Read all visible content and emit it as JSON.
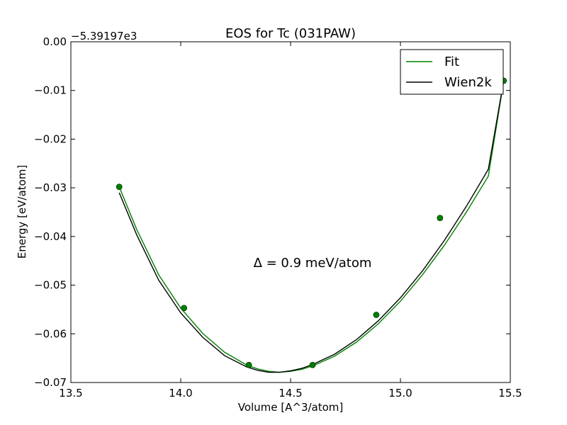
{
  "chart_data": {
    "type": "line",
    "title": "EOS for Tc (031PAW)",
    "xlabel": "Volume [A^3/atom]",
    "ylabel": "Energy [eV/atom]",
    "y_offset_label": "−5.39197e3",
    "xlim": [
      13.5,
      15.5
    ],
    "ylim": [
      -0.07,
      0.0
    ],
    "x_ticks": [
      13.5,
      14.0,
      14.5,
      15.0,
      15.5
    ],
    "x_tick_labels": [
      "13.5",
      "14.0",
      "14.5",
      "15.0",
      "15.5"
    ],
    "y_ticks": [
      0.0,
      -0.01,
      -0.02,
      -0.03,
      -0.04,
      -0.05,
      -0.06,
      -0.07
    ],
    "y_tick_labels": [
      "0.00",
      "−0.01",
      "−0.02",
      "−0.03",
      "−0.04",
      "−0.05",
      "−0.06",
      "−0.07"
    ],
    "grid": false,
    "legend_position": "top-right",
    "annotation": "Δ = 0.9 meV/atom",
    "series": [
      {
        "name": "Fit",
        "color": "#008000",
        "style": "line",
        "x": [
          13.72,
          13.8,
          13.9,
          14.0,
          14.1,
          14.2,
          14.3,
          14.35,
          14.4,
          14.45,
          14.5,
          14.55,
          14.6,
          14.7,
          14.8,
          14.9,
          15.0,
          15.1,
          15.2,
          15.3,
          15.4,
          15.47
        ],
        "y": [
          -0.0298,
          -0.0386,
          -0.0479,
          -0.0547,
          -0.0599,
          -0.0638,
          -0.0664,
          -0.0672,
          -0.0677,
          -0.0679,
          -0.0677,
          -0.0673,
          -0.0666,
          -0.0646,
          -0.0617,
          -0.0579,
          -0.0533,
          -0.0479,
          -0.0418,
          -0.035,
          -0.0276,
          -0.0081
        ]
      },
      {
        "name": "Wien2k",
        "color": "#000000",
        "style": "line",
        "x": [
          13.72,
          13.8,
          13.9,
          14.0,
          14.1,
          14.2,
          14.3,
          14.35,
          14.4,
          14.45,
          14.5,
          14.55,
          14.6,
          14.7,
          14.8,
          14.9,
          15.0,
          15.1,
          15.2,
          15.3,
          15.4,
          15.47
        ],
        "y": [
          -0.031,
          -0.0397,
          -0.049,
          -0.0557,
          -0.0607,
          -0.0645,
          -0.0668,
          -0.0675,
          -0.0679,
          -0.0679,
          -0.0676,
          -0.0671,
          -0.0663,
          -0.0642,
          -0.0612,
          -0.0573,
          -0.0526,
          -0.0471,
          -0.0408,
          -0.0338,
          -0.0262,
          -0.008
        ]
      },
      {
        "name": "",
        "color": "#008000",
        "style": "markers",
        "x": [
          13.72,
          14.015,
          14.31,
          14.6,
          14.89,
          15.18,
          15.47
        ],
        "y": [
          -0.0298,
          -0.0547,
          -0.0664,
          -0.0664,
          -0.0561,
          -0.0362,
          -0.008
        ]
      }
    ]
  }
}
